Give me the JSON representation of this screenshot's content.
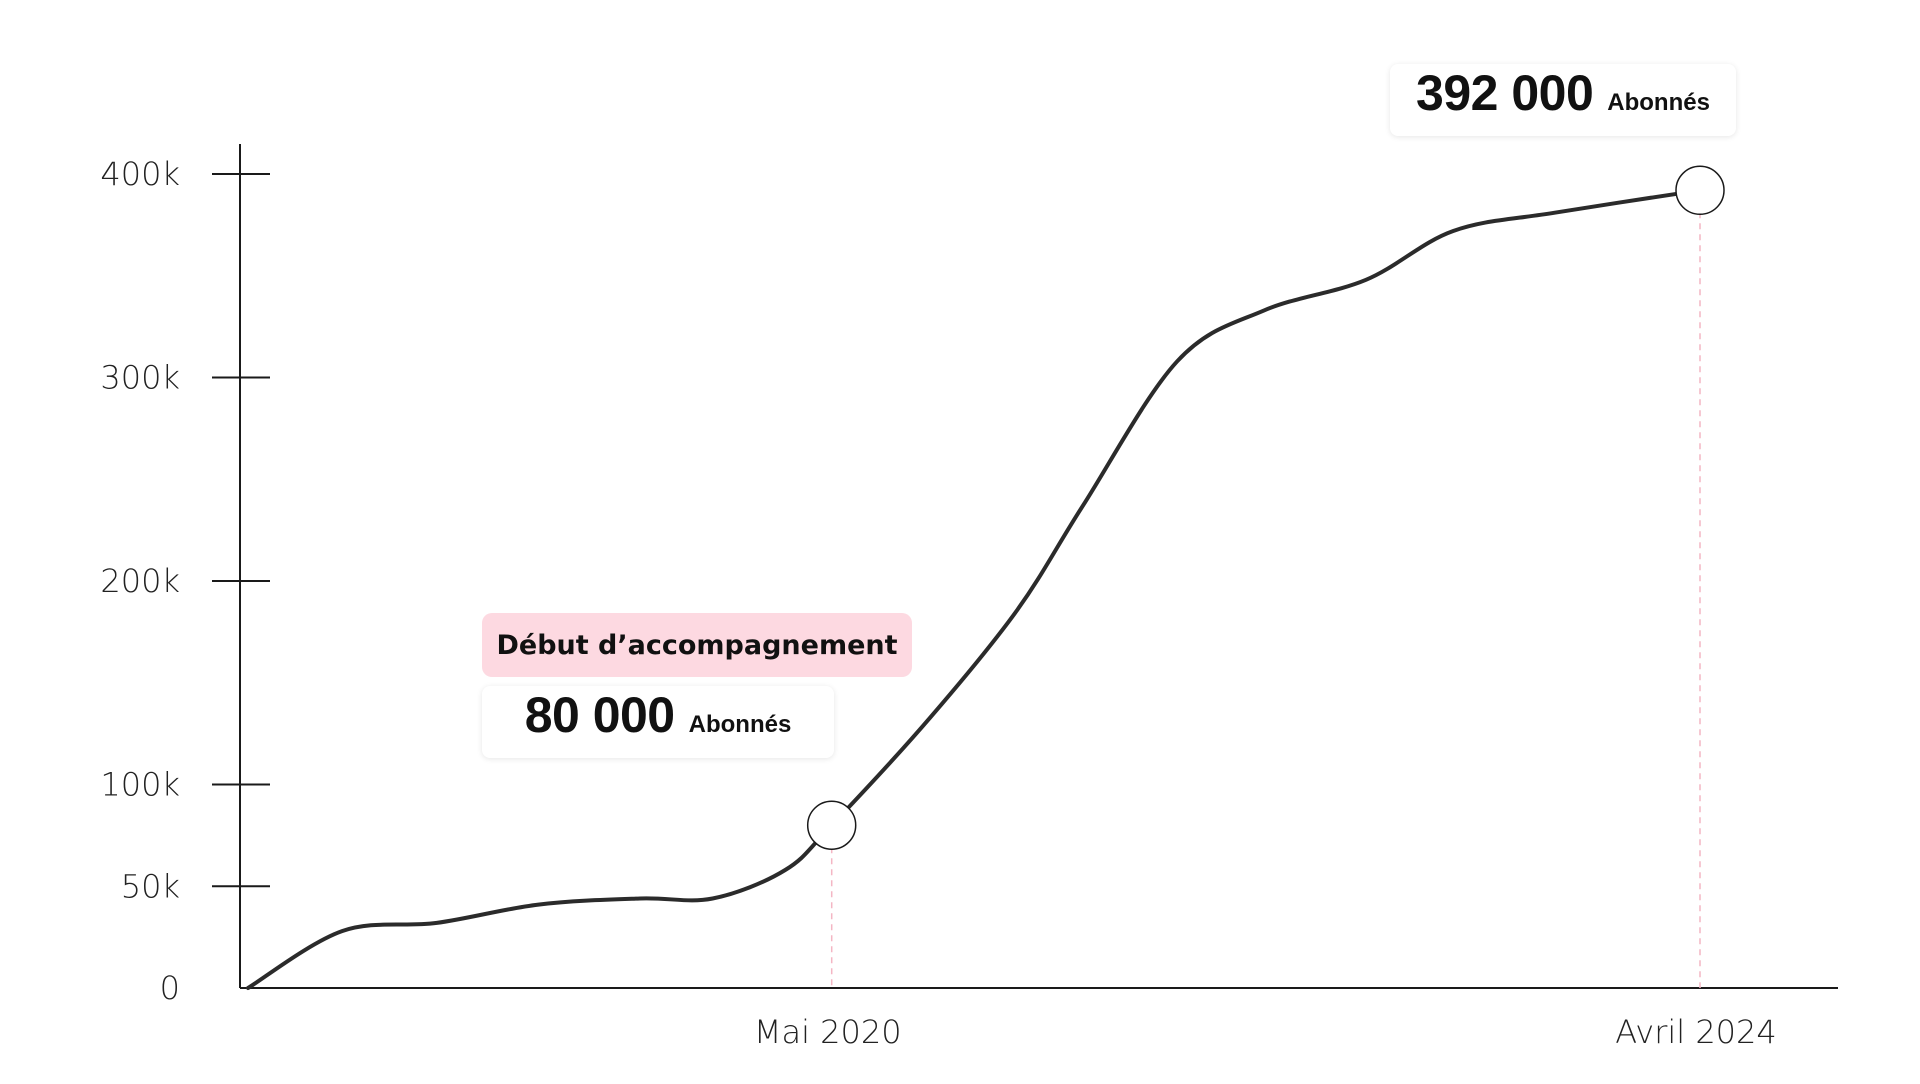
{
  "chart_data": {
    "type": "line",
    "x_labels": [
      "Mai 2020",
      "Avril 2024"
    ],
    "y_ticks": [
      {
        "label": "0",
        "value": 0
      },
      {
        "label": "50k",
        "value": 50000
      },
      {
        "label": "100k",
        "value": 100000
      },
      {
        "label": "200k",
        "value": 200000
      },
      {
        "label": "300k",
        "value": 300000
      },
      {
        "label": "400k",
        "value": 400000
      }
    ],
    "series": [
      {
        "line_color": "#2b2b2b",
        "points": [
          {
            "t": 0.0,
            "y": 0
          },
          {
            "t": 0.065,
            "y": 28000
          },
          {
            "t": 0.13,
            "y": 32000
          },
          {
            "t": 0.2,
            "y": 41000
          },
          {
            "t": 0.27,
            "y": 44000
          },
          {
            "t": 0.32,
            "y": 44000
          },
          {
            "t": 0.37,
            "y": 58000
          },
          {
            "t": 0.402,
            "y": 80000
          },
          {
            "t": 0.47,
            "y": 133000
          },
          {
            "t": 0.53,
            "y": 186000
          },
          {
            "t": 0.575,
            "y": 237000
          },
          {
            "t": 0.64,
            "y": 308000
          },
          {
            "t": 0.7,
            "y": 333000
          },
          {
            "t": 0.77,
            "y": 348000
          },
          {
            "t": 0.83,
            "y": 372000
          },
          {
            "t": 0.9,
            "y": 381000
          },
          {
            "t": 1.0,
            "y": 392000
          }
        ]
      }
    ],
    "highlights": [
      {
        "t": 0.402,
        "y": 80000,
        "x_label": "Mai 2020",
        "value_label": "80 000",
        "unit": "Abonnés",
        "tag": "Début d’accompagnement"
      },
      {
        "t": 1.0,
        "y": 392000,
        "x_label": "Avril 2024",
        "value_label": "392 000",
        "unit": "Abonnés"
      }
    ],
    "ylim": [
      0,
      400000
    ],
    "grid": false
  },
  "colors": {
    "line": "#2b2b2b",
    "axis": "#1a1a1a",
    "marker_fill": "#ffffff",
    "guide_line": "#f4b6c4",
    "tag_background": "#fdd9e1"
  }
}
